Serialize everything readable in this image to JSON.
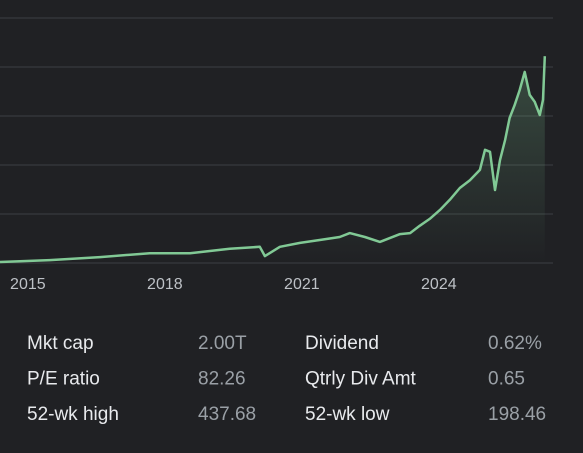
{
  "chart_data": {
    "type": "line",
    "color": "#81c995",
    "x": [
      2014.39,
      2015.48,
      2016.58,
      2017.67,
      2018.55,
      2019.42,
      2020.08,
      2020.19,
      2020.52,
      2020.96,
      2021.39,
      2021.83,
      2022.05,
      2022.38,
      2022.71,
      2023.15,
      2023.37,
      2023.58,
      2023.8,
      2024.02,
      2024.24,
      2024.46,
      2024.68,
      2024.9,
      2025.01,
      2025.12,
      2025.23,
      2025.34,
      2025.45,
      2025.55,
      2025.66,
      2025.77,
      2025.88,
      2025.99,
      2026.1,
      2026.21,
      2026.28,
      2026.32
    ],
    "values": [
      2,
      6,
      12,
      20,
      20,
      29,
      33,
      14,
      33,
      41,
      47,
      53,
      61,
      53,
      43,
      59,
      61,
      76,
      90,
      108,
      129,
      153,
      169,
      190,
      231,
      227,
      149,
      210,
      251,
      296,
      322,
      353,
      390,
      343,
      329,
      302,
      333,
      422
    ],
    "xlim": [
      2014.39,
      2026.5
    ],
    "xticks": [
      2015,
      2018,
      2021,
      2024
    ],
    "ylim": [
      0,
      500
    ],
    "yticks": [
      0,
      100,
      200,
      300,
      400,
      500
    ],
    "grid": true
  },
  "stats": [
    {
      "label": "Mkt cap",
      "value": "2.00T"
    },
    {
      "label": "P/E ratio",
      "value": "82.26"
    },
    {
      "label": "52-wk high",
      "value": "437.68"
    },
    {
      "label": "Dividend",
      "value": "0.62%"
    },
    {
      "label": "Qtrly Div Amt",
      "value": "0.65"
    },
    {
      "label": "52-wk low",
      "value": "198.46"
    }
  ]
}
